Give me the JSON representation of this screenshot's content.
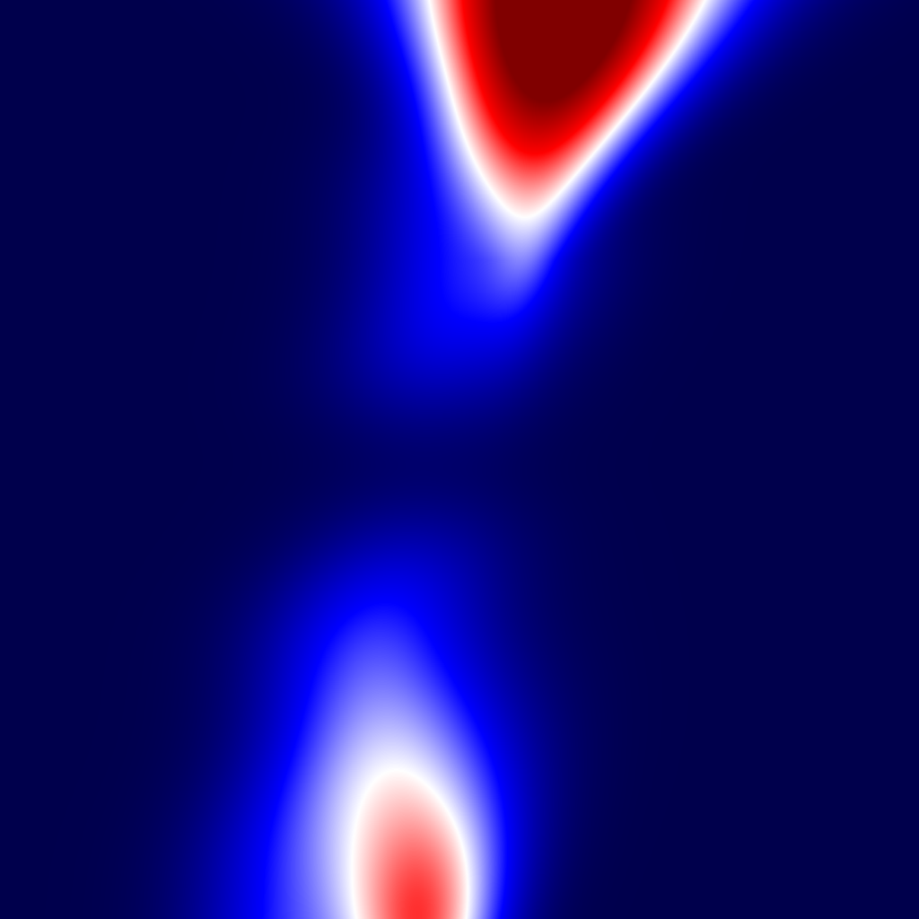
{
  "image": {
    "kind": "seismic-style diverging color field",
    "colormap": {
      "name": "seismic",
      "stops": [
        "#00004c",
        "#0000ff",
        "#ffffff",
        "#ff0000",
        "#800000"
      ]
    },
    "background_color": "#000050",
    "features": [
      {
        "name": "upper-positive-lobe",
        "peak_level": 1.0
      },
      {
        "name": "lower-positive-lobe",
        "peak_level": 0.62
      },
      {
        "name": "central-blue-band",
        "peak_level": 0.3
      }
    ]
  }
}
